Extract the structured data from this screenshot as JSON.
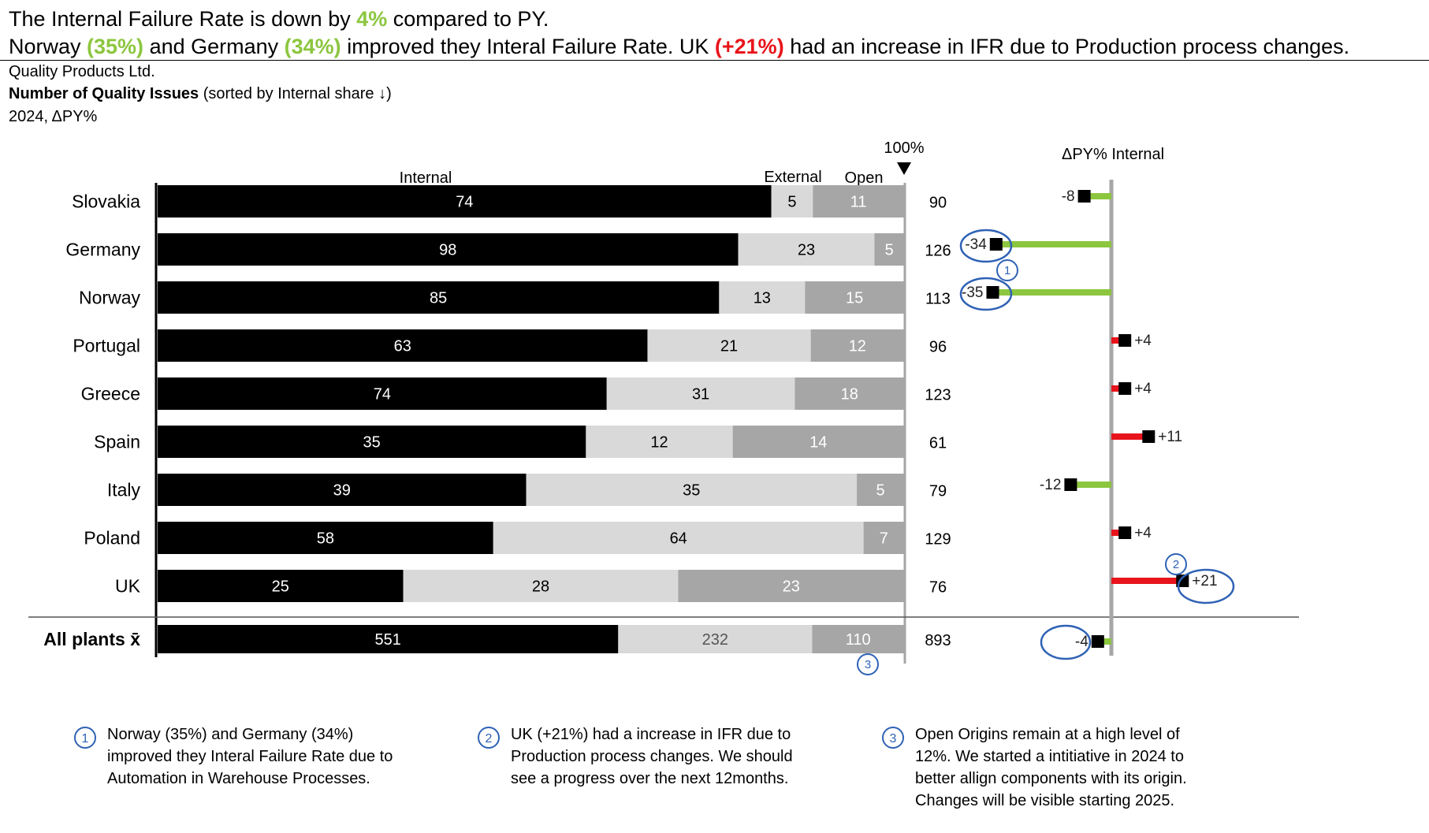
{
  "headline": {
    "line1": {
      "pre": "The Internal Failure Rate is down by ",
      "highlight": "4%",
      "post": " compared to PY."
    },
    "line2": {
      "p1": "Norway ",
      "h1": "(35%)",
      "p2": "  and Germany ",
      "h2": "(34%)",
      "p3": " improved they Interal Failure Rate. UK ",
      "h3": "(+21%)",
      "p4": " had an increase in IFR due to Production process changes."
    }
  },
  "company": "Quality Products Ltd.",
  "measure": {
    "bold": "Number of Quality Issues",
    "rest": " (sorted by Internal share ↓)"
  },
  "period": "2024,  ΔPY%",
  "colors": {
    "internal": "#000000",
    "external": "#d9d9d9",
    "open": "#a6a6a6",
    "good": "#8cc63f",
    "bad": "#e8141b",
    "axis": "#a6a6a6",
    "callout": "#2f62b5"
  },
  "chart_data": {
    "type": "bar",
    "stacked": true,
    "normalized": true,
    "series_labels": [
      "Internal",
      "External",
      "Open"
    ],
    "scale_marker": "100%",
    "categories": [
      "Slovakia",
      "Germany",
      "Norway",
      "Portugal",
      "Greece",
      "Spain",
      "Italy",
      "Poland",
      "UK"
    ],
    "internal": [
      74,
      98,
      85,
      63,
      74,
      35,
      39,
      58,
      25
    ],
    "external": [
      5,
      23,
      13,
      21,
      31,
      12,
      35,
      64,
      28
    ],
    "open": [
      11,
      5,
      15,
      12,
      18,
      14,
      5,
      7,
      23
    ],
    "totals": [
      "90",
      "126",
      "113",
      "96",
      "123",
      "61",
      "79",
      "129",
      "76"
    ],
    "total_row": {
      "label": "All plants x̄",
      "internal": 551,
      "external": 232,
      "open": 110,
      "total": "893"
    },
    "delta_title": "ΔPY% Internal",
    "delta_values": [
      -8,
      -34,
      -35,
      4,
      4,
      11,
      -12,
      4,
      21
    ],
    "delta_labels": [
      "-8",
      "-34",
      "-35",
      "+4",
      "+4",
      "+11",
      "-12",
      "+4",
      "+21"
    ],
    "delta_total": {
      "value": -4,
      "label": "-4"
    }
  },
  "callouts": [
    {
      "num": "1",
      "text": "Norway (35%)  and Germany (34%) improved they Interal Failure Rate due to Automation in Warehouse Processes."
    },
    {
      "num": "2",
      "text": "UK (+21%) had a increase in IFR due to Production process changes. We should see a progress over the next 12months."
    },
    {
      "num": "3",
      "text": "Open Origins remain at a high level of 12%. We started a intitiative in 2024 to better allign components with its origin. Changes will be visible starting 2025."
    }
  ]
}
